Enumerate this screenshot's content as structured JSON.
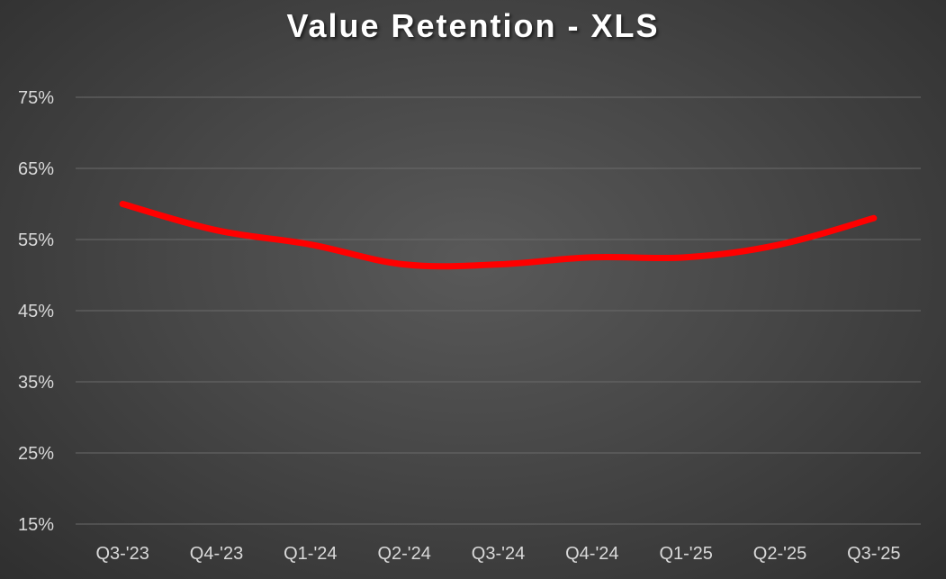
{
  "chart_data": {
    "type": "line",
    "title": "Value Retention - XLS",
    "categories": [
      "Q3-'23",
      "Q4-'23",
      "Q1-'24",
      "Q2-'24",
      "Q3-'24",
      "Q4-'24",
      "Q1-'25",
      "Q2-'25",
      "Q3-'25"
    ],
    "series": [
      {
        "values": [
          60,
          56.3,
          54.3,
          51.5,
          51.5,
          52.5,
          52.5,
          54.3,
          58
        ],
        "color": "#ff0000"
      }
    ],
    "yticks": [
      "15%",
      "25%",
      "35%",
      "45%",
      "55%",
      "65%",
      "75%"
    ],
    "ylim": [
      15,
      75
    ],
    "xlabel": "",
    "ylabel": "",
    "grid": true,
    "legend": "none"
  }
}
